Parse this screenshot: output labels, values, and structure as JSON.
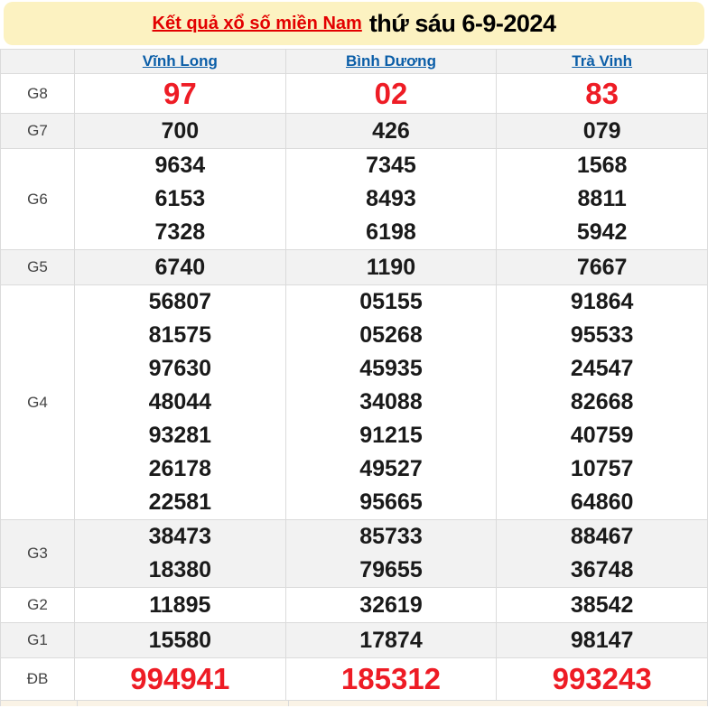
{
  "header": {
    "title_link": "Kết quả xổ số miền Nam",
    "draw_date": "thứ sáu 6-9-2024"
  },
  "columns": [
    "Vĩnh Long",
    "Bình Dương",
    "Trà Vinh"
  ],
  "rows": [
    {
      "label": "G8",
      "key": "g8",
      "highlight": true,
      "cells": [
        [
          "97"
        ],
        [
          "02"
        ],
        [
          "83"
        ]
      ]
    },
    {
      "label": "G7",
      "key": "g7",
      "highlight": false,
      "cells": [
        [
          "700"
        ],
        [
          "426"
        ],
        [
          "079"
        ]
      ]
    },
    {
      "label": "G6",
      "key": "g6",
      "highlight": false,
      "cells": [
        [
          "9634",
          "6153",
          "7328"
        ],
        [
          "7345",
          "8493",
          "6198"
        ],
        [
          "1568",
          "8811",
          "5942"
        ]
      ]
    },
    {
      "label": "G5",
      "key": "g5",
      "highlight": false,
      "cells": [
        [
          "6740"
        ],
        [
          "1190"
        ],
        [
          "7667"
        ]
      ]
    },
    {
      "label": "G4",
      "key": "g4",
      "highlight": false,
      "cells": [
        [
          "56807",
          "81575",
          "97630",
          "48044",
          "93281",
          "26178",
          "22581"
        ],
        [
          "05155",
          "05268",
          "45935",
          "34088",
          "91215",
          "49527",
          "95665"
        ],
        [
          "91864",
          "95533",
          "24547",
          "82668",
          "40759",
          "10757",
          "64860"
        ]
      ]
    },
    {
      "label": "G3",
      "key": "g3",
      "highlight": false,
      "cells": [
        [
          "38473",
          "18380"
        ],
        [
          "85733",
          "79655"
        ],
        [
          "88467",
          "36748"
        ]
      ]
    },
    {
      "label": "G2",
      "key": "g2",
      "highlight": false,
      "cells": [
        [
          "11895"
        ],
        [
          "32619"
        ],
        [
          "38542"
        ]
      ]
    },
    {
      "label": "G1",
      "key": "g1",
      "highlight": false,
      "cells": [
        [
          "15580"
        ],
        [
          "17874"
        ],
        [
          "98147"
        ]
      ]
    },
    {
      "label": "ĐB",
      "key": "db",
      "highlight": true,
      "cells": [
        [
          "994941"
        ],
        [
          "185312"
        ],
        [
          "993243"
        ]
      ]
    }
  ],
  "colors": {
    "banner_bg": "#fcf2c1",
    "number_red": "#ee1c25",
    "title_red": "#e30000",
    "link_blue": "#0b5ea8",
    "gray_row": "#f2f2f2",
    "border": "#dbdbdb",
    "next_section_bg": "#faf3e6"
  }
}
